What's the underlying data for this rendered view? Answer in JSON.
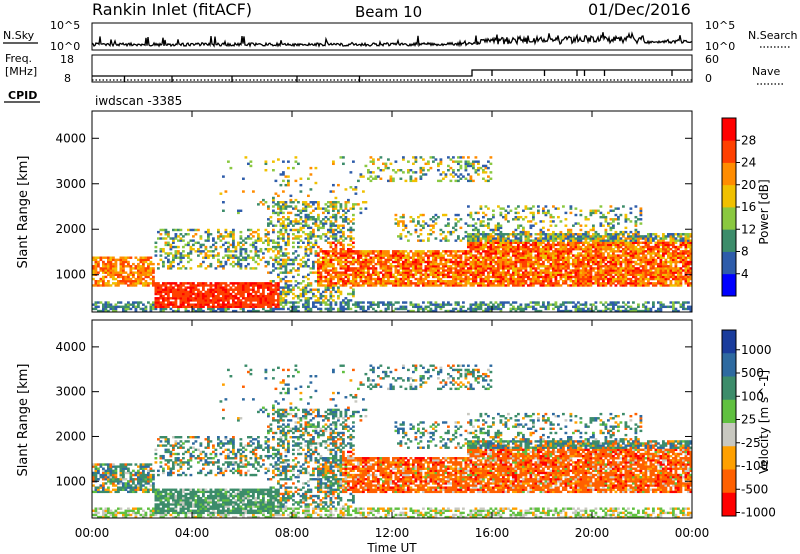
{
  "header": {
    "station": "Rankin Inlet (fitACF)",
    "beam": "Beam 10",
    "date": "01/Dec/2016"
  },
  "top_panel": {
    "nsky_label": "N.Sky",
    "nsky_ticks": [
      "10^5",
      "10^0"
    ],
    "nsearch_label": "N.Search",
    "nsearch_ticks": [
      "10^5",
      "10^0"
    ],
    "freq_label": "Freq.",
    "freq_unit": "[MHz]",
    "freq_ticks": [
      "18",
      "8"
    ],
    "nave_label": "Nave",
    "nave_ticks": [
      "60",
      "0"
    ],
    "cpid_label": "CPID",
    "cpid_value": "iwdscan -3385"
  },
  "chart_data": [
    {
      "type": "heatmap",
      "name": "power-panel",
      "ylabel": "Slant Range [km]",
      "yticks": [
        "4000",
        "3000",
        "2000",
        "1000"
      ],
      "ylim": [
        180,
        4600
      ],
      "colorbar": {
        "label": "Power [dB]",
        "ticks": [
          "28",
          "24",
          "20",
          "16",
          "12",
          "8",
          "4"
        ],
        "colors": [
          "#0000ff",
          "#2e5caa",
          "#3c8c6a",
          "#8ac840",
          "#f0c000",
          "#ff8c00",
          "#ff4000",
          "#ff0000"
        ]
      },
      "summary": [
        {
          "time_h": 0.1,
          "range_km": [
            900,
            1100
          ],
          "value_db": 26
        },
        {
          "time_h": 3.5,
          "range_km": [
            300,
            700
          ],
          "value_db": 28
        },
        {
          "time_h": 8.5,
          "range_km": [
            800,
            1400
          ],
          "value_db": 22
        },
        {
          "time_h": 13.0,
          "range_km": [
            800,
            1300
          ],
          "value_db": 26
        },
        {
          "time_h": 20.0,
          "range_km": [
            800,
            1700
          ],
          "value_db": 28
        }
      ]
    },
    {
      "type": "heatmap",
      "name": "velocity-panel",
      "ylabel": "Slant Range [km]",
      "yticks": [
        "4000",
        "3000",
        "2000",
        "1000"
      ],
      "ylim": [
        180,
        4600
      ],
      "colorbar": {
        "label": "Velocity [m s^-1]",
        "ticks": [
          "1000",
          "500",
          "100",
          "25",
          "-25",
          "-100",
          "-500",
          "-1000"
        ],
        "colors": [
          "#1a3c9c",
          "#2e6aa0",
          "#3c8c6a",
          "#60c040",
          "#c8c8c0",
          "#ffa000",
          "#ff6000",
          "#ff0000"
        ]
      },
      "summary": [
        {
          "time_h": 4.0,
          "range_km": [
            300,
            700
          ],
          "value_ms": 100
        },
        {
          "time_h": 13.0,
          "range_km": [
            800,
            1300
          ],
          "value_ms": -100
        },
        {
          "time_h": 20.0,
          "range_km": [
            800,
            1700
          ],
          "value_ms": -300
        }
      ]
    }
  ],
  "xaxis": {
    "label": "Time UT",
    "ticks": [
      "00:00",
      "04:00",
      "08:00",
      "12:00",
      "16:00",
      "20:00",
      "00:00"
    ]
  }
}
